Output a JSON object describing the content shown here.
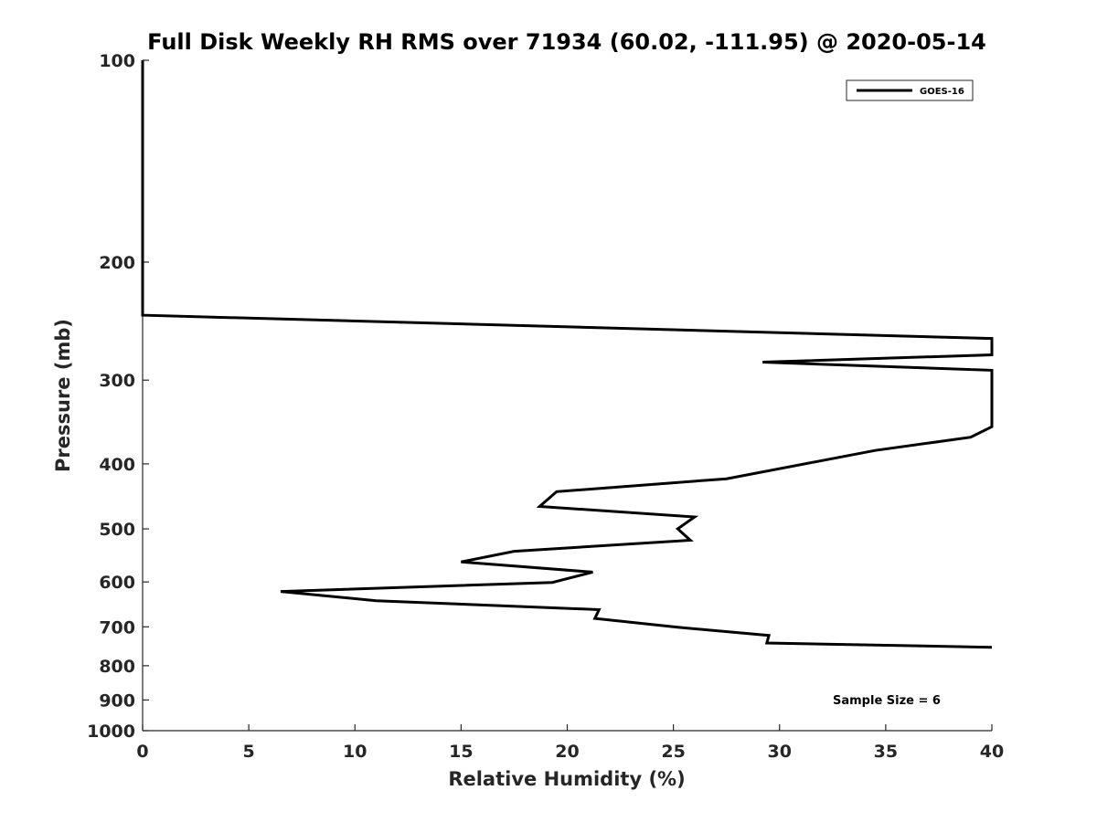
{
  "chart_data": {
    "type": "line",
    "title": "Full Disk Weekly RH RMS over 71934 (60.02, -111.95) @ 2020-05-14",
    "xlabel": "Relative Humidity (%)",
    "ylabel": "Pressure (mb)",
    "xlim": [
      0,
      40
    ],
    "ylim": [
      100,
      1000
    ],
    "y_scale": "log",
    "y_reversed": true,
    "grid": false,
    "legend_position": "top-right",
    "x_ticks": [
      0,
      5,
      10,
      15,
      20,
      25,
      30,
      35,
      40
    ],
    "x_tick_labels": [
      "0",
      "5",
      "10",
      "15",
      "20",
      "25",
      "30",
      "35",
      "40"
    ],
    "y_ticks": [
      100,
      200,
      300,
      400,
      500,
      600,
      700,
      800,
      900,
      1000
    ],
    "y_tick_labels": [
      "100",
      "200",
      "300",
      "400",
      "500",
      "600",
      "700",
      "800",
      "900",
      "1000"
    ],
    "series": [
      {
        "name": "GOES-16",
        "color": "#000000",
        "points": [
          [
            0,
            100
          ],
          [
            0,
            240
          ],
          [
            40,
            260
          ],
          [
            40,
            275
          ],
          [
            29.2,
            282
          ],
          [
            40,
            290
          ],
          [
            40,
            352
          ],
          [
            39,
            365
          ],
          [
            34.5,
            382
          ],
          [
            27.5,
            421
          ],
          [
            19.5,
            440
          ],
          [
            18.7,
            463
          ],
          [
            26,
            480
          ],
          [
            25.2,
            500
          ],
          [
            25.8,
            520
          ],
          [
            17.5,
            540
          ],
          [
            15,
            560
          ],
          [
            21.2,
            580
          ],
          [
            19.3,
            601
          ],
          [
            6.5,
            620
          ],
          [
            11,
            640
          ],
          [
            21.5,
            660
          ],
          [
            21.3,
            680
          ],
          [
            25.2,
            701
          ],
          [
            29.5,
            721
          ],
          [
            29.4,
            740
          ],
          [
            40,
            751
          ]
        ]
      }
    ],
    "annotation": "Sample Size = 6"
  }
}
